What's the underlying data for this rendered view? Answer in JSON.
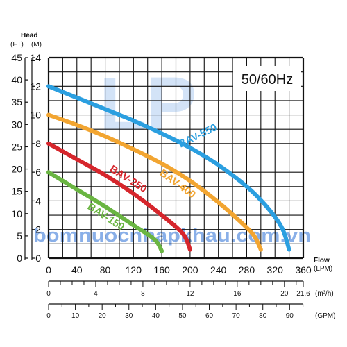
{
  "chart_data": {
    "type": "line",
    "frequency_label": "50/60Hz",
    "y_title": "Head",
    "y_unit_ft": "(FT)",
    "y_unit_m": "(M)",
    "x_title": "Flow",
    "x_unit_lpm": "(LPM)",
    "unit_m3h": "(m³/h)",
    "unit_gpm": "(GPM)",
    "m3h_end_label": "21.6",
    "xlim_lpm": [
      0,
      360
    ],
    "ylim_m": [
      0,
      14
    ],
    "ylim_ft": [
      0,
      45
    ],
    "grid": true,
    "x_ticks_lpm": [
      "0",
      "40",
      "80",
      "120",
      "160",
      "200",
      "240",
      "280",
      "320",
      "360"
    ],
    "y_ticks_m": [
      "0",
      "2",
      "4",
      "6",
      "8",
      "10",
      "12",
      "14"
    ],
    "y_ticks_ft": [
      "0",
      "5",
      "10",
      "15",
      "20",
      "25",
      "30",
      "35",
      "40",
      "45"
    ],
    "m3h_ticks": [
      "0",
      "4",
      "8",
      "12",
      "16",
      "20"
    ],
    "m3h_values": [
      0,
      4,
      8,
      12,
      16,
      20
    ],
    "gpm_ticks": [
      "0",
      "10",
      "20",
      "30",
      "40",
      "50",
      "60",
      "70",
      "80",
      "90"
    ],
    "gpm_values": [
      0,
      10,
      20,
      30,
      40,
      50,
      60,
      70,
      80,
      90
    ],
    "series": [
      {
        "name": "BAV-150",
        "color": "#6ab542",
        "x": [
          0,
          40,
          80,
          120,
          150,
          160
        ],
        "y": [
          6.0,
          4.8,
          3.6,
          2.3,
          1.3,
          0.5
        ]
      },
      {
        "name": "BAV-250",
        "color": "#d6262c",
        "x": [
          0,
          40,
          80,
          120,
          160,
          190,
          200
        ],
        "y": [
          8.0,
          6.9,
          5.8,
          4.5,
          3.0,
          1.7,
          0.6
        ]
      },
      {
        "name": "BAV-400",
        "color": "#f2a531",
        "x": [
          0,
          40,
          80,
          120,
          160,
          200,
          240,
          270,
          290,
          300
        ],
        "y": [
          10.0,
          9.3,
          8.5,
          7.6,
          6.6,
          5.4,
          3.9,
          2.6,
          1.6,
          0.6
        ]
      },
      {
        "name": "BAV-550",
        "color": "#2b9fe0",
        "x": [
          0,
          40,
          80,
          120,
          160,
          200,
          240,
          280,
          310,
          330,
          340
        ],
        "y": [
          12.0,
          11.2,
          10.4,
          9.6,
          8.7,
          7.7,
          6.5,
          5.0,
          3.5,
          2.1,
          0.6
        ]
      }
    ]
  },
  "watermark": {
    "logo": "LP",
    "text": "bomnuocnhapkhau.com.vn"
  }
}
